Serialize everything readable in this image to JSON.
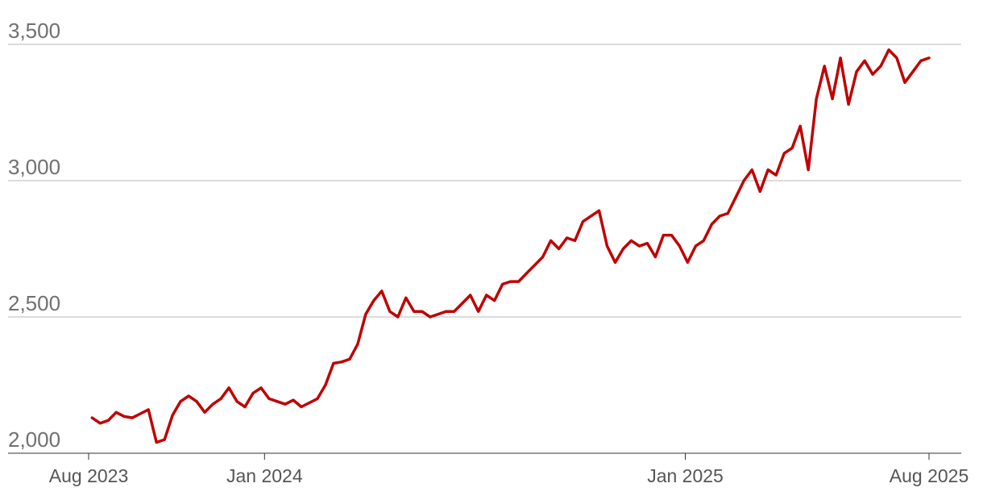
{
  "chart_data": {
    "type": "line",
    "title": "",
    "xlabel": "",
    "ylabel": "",
    "ylim": [
      2000,
      3500
    ],
    "xlim": [
      "2023-08-01",
      "2025-08-01"
    ],
    "grid": true,
    "line_color": "#c00000",
    "y_ticks": [
      {
        "value": 2000,
        "label": "2,000"
      },
      {
        "value": 2500,
        "label": "2,500"
      },
      {
        "value": 3000,
        "label": "3,000"
      },
      {
        "value": 3500,
        "label": "3,500"
      }
    ],
    "x_ticks": [
      {
        "date": "2023-08-01",
        "label": "Aug 2023"
      },
      {
        "date": "2024-01-01",
        "label": "Jan 2024"
      },
      {
        "date": "2025-01-01",
        "label": "Jan 2025"
      },
      {
        "date": "2025-08-01",
        "label": "Aug 2025"
      }
    ],
    "series": [
      {
        "x": [
          "2023-08-04",
          "2023-08-11",
          "2023-08-18",
          "2023-08-25",
          "2023-09-01",
          "2023-09-08",
          "2023-09-15",
          "2023-09-22",
          "2023-09-29",
          "2023-10-06",
          "2023-10-13",
          "2023-10-20",
          "2023-10-27",
          "2023-11-03",
          "2023-11-10",
          "2023-11-17",
          "2023-11-24",
          "2023-12-01",
          "2023-12-08",
          "2023-12-15",
          "2023-12-22",
          "2023-12-29",
          "2024-01-05",
          "2024-01-12",
          "2024-01-19",
          "2024-01-26",
          "2024-02-02",
          "2024-02-09",
          "2024-02-16",
          "2024-02-23",
          "2024-03-01",
          "2024-03-08",
          "2024-03-15",
          "2024-03-22",
          "2024-03-29",
          "2024-04-05",
          "2024-04-12",
          "2024-04-19",
          "2024-04-26",
          "2024-05-03",
          "2024-05-10",
          "2024-05-17",
          "2024-05-24",
          "2024-05-31",
          "2024-06-07",
          "2024-06-14",
          "2024-06-21",
          "2024-06-28",
          "2024-07-05",
          "2024-07-12",
          "2024-07-19",
          "2024-07-26",
          "2024-08-02",
          "2024-08-09",
          "2024-08-16",
          "2024-08-23",
          "2024-08-30",
          "2024-09-06",
          "2024-09-13",
          "2024-09-20",
          "2024-09-27",
          "2024-10-04",
          "2024-10-11",
          "2024-10-18",
          "2024-10-25",
          "2024-11-01",
          "2024-11-08",
          "2024-11-15",
          "2024-11-22",
          "2024-11-29",
          "2024-12-06",
          "2024-12-13",
          "2024-12-20",
          "2024-12-27",
          "2025-01-03",
          "2025-01-10",
          "2025-01-17",
          "2025-01-24",
          "2025-01-31",
          "2025-02-07",
          "2025-02-14",
          "2025-02-21",
          "2025-02-28",
          "2025-03-07",
          "2025-03-14",
          "2025-03-21",
          "2025-03-28",
          "2025-04-04",
          "2025-04-11",
          "2025-04-18",
          "2025-04-25",
          "2025-05-02",
          "2025-05-09",
          "2025-05-16",
          "2025-05-23",
          "2025-05-30",
          "2025-06-06",
          "2025-06-13",
          "2025-06-20",
          "2025-06-27",
          "2025-07-04",
          "2025-07-11",
          "2025-07-18",
          "2025-07-25",
          "2025-08-01"
        ],
        "values": [
          2130,
          2110,
          2120,
          2150,
          2135,
          2130,
          2145,
          2160,
          2040,
          2050,
          2140,
          2190,
          2210,
          2190,
          2150,
          2180,
          2200,
          2240,
          2190,
          2170,
          2220,
          2240,
          2200,
          2190,
          2180,
          2195,
          2170,
          2185,
          2200,
          2250,
          2330,
          2335,
          2345,
          2400,
          2510,
          2560,
          2595,
          2520,
          2500,
          2570,
          2520,
          2520,
          2500,
          2510,
          2520,
          2520,
          2550,
          2580,
          2520,
          2580,
          2560,
          2620,
          2630,
          2630,
          2660,
          2690,
          2720,
          2780,
          2750,
          2790,
          2780,
          2850,
          2870,
          2890,
          2760,
          2700,
          2750,
          2780,
          2760,
          2770,
          2720,
          2800,
          2800,
          2760,
          2700,
          2760,
          2780,
          2840,
          2870,
          2880,
          2940,
          3000,
          3040,
          2960,
          3040,
          3020,
          3100,
          3120,
          3200,
          3040,
          3300,
          3420,
          3300,
          3450,
          3280,
          3400,
          3440,
          3390,
          3420,
          3480,
          3450,
          3360,
          3400,
          3440,
          3450
        ]
      }
    ]
  }
}
